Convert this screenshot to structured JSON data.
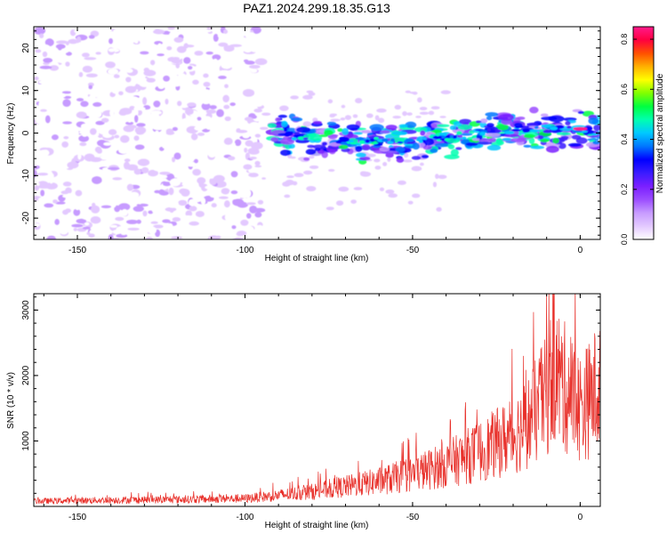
{
  "title": "PAZ1.2024.299.18.35.G13",
  "colors": {
    "snr_line": "#e8302a",
    "frame": "#000000",
    "colormap": [
      "#ffffff",
      "#e3c9ff",
      "#c79bff",
      "#9b4dff",
      "#7a1fff",
      "#3a1bff",
      "#0000ff",
      "#0077ff",
      "#00c8ff",
      "#00ffb0",
      "#00ff40",
      "#80ff00",
      "#ffff00",
      "#ffb000",
      "#ff5000",
      "#ff0040",
      "#ff1a8c"
    ]
  },
  "chart_data": [
    {
      "type": "heatmap",
      "title": "PAZ1.2024.299.18.35.G13",
      "xlabel": "Height of straight line (km)",
      "ylabel": "Frequency (Hz)",
      "xlim": [
        -163,
        6
      ],
      "ylim": [
        -25,
        25
      ],
      "xticks": [
        -150,
        -100,
        -50,
        0
      ],
      "yticks": [
        -20,
        -10,
        0,
        10,
        20
      ],
      "colorbar": {
        "label": "Normalized spectral amplitude",
        "range": [
          0.0,
          0.85
        ],
        "ticks": [
          "0.0",
          "0.2",
          "0.4",
          "0.6",
          "0.8"
        ]
      },
      "features": [
        {
          "name": "broadband noise",
          "x_range": [
            -163,
            -95
          ],
          "freq_range": [
            -25,
            25
          ],
          "amplitude": 0.12
        },
        {
          "name": "carrier band",
          "x_range": [
            -92,
            6
          ],
          "freq_center_at_x": [
            [
              -92,
              1
            ],
            [
              -80,
              -2
            ],
            [
              -60,
              -2
            ],
            [
              -40,
              -1
            ],
            [
              -20,
              1
            ],
            [
              0,
              1
            ],
            [
              6,
              0
            ]
          ],
          "peak_amplitude": 0.85,
          "peak_x": 0
        }
      ]
    },
    {
      "type": "line",
      "xlabel": "Height of straight line (km)",
      "ylabel": "SNR (10 * v/v)",
      "xlim": [
        -163,
        6
      ],
      "ylim": [
        0,
        3250
      ],
      "xticks": [
        -150,
        -100,
        -50,
        0
      ],
      "yticks": [
        1000,
        2000,
        3000
      ],
      "series": [
        {
          "envelope": [
            [
              -163,
              100
            ],
            [
              -140,
              120
            ],
            [
              -120,
              130
            ],
            [
              -100,
              150
            ],
            [
              -90,
              210
            ],
            [
              -80,
              280
            ],
            [
              -70,
              380
            ],
            [
              -60,
              480
            ],
            [
              -50,
              620
            ],
            [
              -40,
              800
            ],
            [
              -30,
              1050
            ],
            [
              -20,
              1350
            ],
            [
              -15,
              1650
            ],
            [
              -10,
              2100
            ],
            [
              -8,
              2600
            ],
            [
              -5,
              2300
            ],
            [
              0,
              1900
            ],
            [
              3,
              2050
            ],
            [
              6,
              2350
            ]
          ],
          "peak": {
            "x": -10,
            "y": 3250
          }
        }
      ]
    }
  ]
}
